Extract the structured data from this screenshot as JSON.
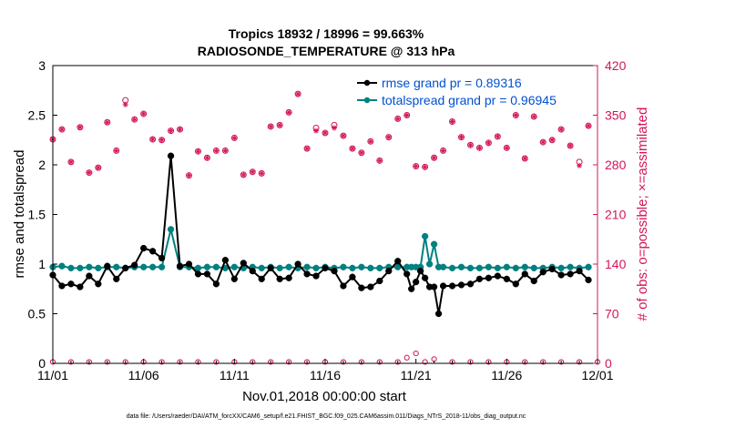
{
  "chart_data": {
    "type": "line",
    "title": "Tropics 18932 / 18996 = 99.663%",
    "subtitle": "RADIOSONDE_TEMPERATURE @ 313 hPa",
    "xlabel": "Nov.01,2018 00:00:00 start",
    "ylabel_left": "rmse and totalspread",
    "ylabel_right": "# of obs: o=possible; ×=assimilated",
    "footnote": "data file: /Users/raeder/DAI/ATM_forcXX/CAM6_setup/f.e21.FHIST_BGC.f09_025.CAM6assim.011/Diags_NTrS_2018-11/obs_diag_output.nc",
    "x_tick_labels": [
      "11/01",
      "11/06",
      "11/11",
      "11/16",
      "11/21",
      "11/26",
      "12/01"
    ],
    "x_ticks_days": [
      0,
      5,
      10,
      15,
      20,
      25,
      30
    ],
    "xlim_days": [
      0,
      30
    ],
    "ylim_left": [
      0,
      3
    ],
    "y_ticks_left": [
      "0",
      "0.5",
      "1",
      "1.5",
      "2",
      "2.5",
      "3"
    ],
    "ylim_right": [
      0,
      420
    ],
    "y_ticks_right": [
      "0",
      "70",
      "140",
      "210",
      "280",
      "350",
      "420"
    ],
    "legend_placement": "top-right",
    "colors": {
      "rmse": "#000000",
      "totalspread": "#008080",
      "obs": "#d4145a",
      "legend_text": "#0050d0"
    },
    "series": [
      {
        "name": "rmse grand pr = 0.89316",
        "axis": "left",
        "x": [
          0,
          0.5,
          1,
          1.5,
          2,
          2.5,
          3,
          3.5,
          4,
          4.5,
          5,
          5.5,
          6,
          6.5,
          7,
          7.5,
          8,
          8.5,
          9,
          9.5,
          10,
          10.5,
          11,
          11.5,
          12,
          12.5,
          13,
          13.5,
          14,
          14.5,
          15,
          15.5,
          16,
          16.5,
          17,
          17.5,
          18,
          18.5,
          19,
          19.5,
          19.75,
          20,
          20.25,
          20.5,
          20.75,
          21,
          21.25,
          21.5,
          22,
          22.5,
          23,
          23.5,
          24,
          24.5,
          25,
          25.5,
          26,
          26.5,
          27,
          27.5,
          28,
          28.5,
          29,
          29.5
        ],
        "values": [
          0.89,
          0.78,
          0.8,
          0.77,
          0.88,
          0.8,
          0.98,
          0.85,
          0.96,
          0.99,
          1.16,
          1.13,
          1.06,
          2.09,
          0.98,
          1.0,
          0.9,
          0.9,
          0.8,
          1.04,
          0.85,
          1.01,
          0.93,
          0.85,
          0.96,
          0.85,
          0.86,
          1.0,
          0.9,
          0.88,
          0.96,
          0.93,
          0.78,
          0.87,
          0.76,
          0.77,
          0.83,
          0.93,
          1.03,
          0.9,
          0.75,
          0.82,
          0.93,
          0.86,
          0.77,
          0.77,
          0.5,
          0.78,
          0.78,
          0.79,
          0.8,
          0.85,
          0.86,
          0.88,
          0.85,
          0.8,
          0.9,
          0.83,
          0.92,
          0.95,
          0.89,
          0.9,
          0.93,
          0.84
        ]
      },
      {
        "name": "totalspread grand pr = 0.96945",
        "axis": "left",
        "x": [
          0,
          0.5,
          1,
          1.5,
          2,
          2.5,
          3,
          3.5,
          4,
          4.5,
          5,
          5.5,
          6,
          6.5,
          7,
          7.5,
          8,
          8.5,
          9,
          9.5,
          10,
          10.5,
          11,
          11.5,
          12,
          12.5,
          13,
          13.5,
          14,
          14.5,
          15,
          15.5,
          16,
          16.5,
          17,
          17.5,
          18,
          18.5,
          19,
          19.5,
          19.75,
          20,
          20.25,
          20.5,
          20.75,
          21,
          21.25,
          21.5,
          22,
          22.5,
          23,
          23.5,
          24,
          24.5,
          25,
          25.5,
          26,
          26.5,
          27,
          27.5,
          28,
          28.5,
          29,
          29.5
        ],
        "values": [
          0.97,
          0.98,
          0.96,
          0.96,
          0.97,
          0.96,
          0.97,
          0.97,
          0.96,
          0.97,
          0.97,
          0.97,
          0.97,
          1.35,
          0.97,
          0.97,
          0.96,
          0.97,
          0.97,
          0.96,
          0.97,
          0.96,
          0.97,
          0.96,
          0.97,
          0.96,
          0.97,
          0.96,
          0.97,
          0.96,
          0.97,
          0.96,
          0.97,
          0.96,
          0.97,
          0.96,
          0.96,
          0.97,
          0.97,
          0.97,
          0.97,
          0.97,
          0.97,
          1.28,
          1.0,
          1.2,
          0.97,
          0.97,
          0.96,
          0.97,
          0.96,
          0.96,
          0.97,
          0.96,
          0.97,
          0.96,
          0.97,
          0.96,
          0.96,
          0.97,
          0.96,
          0.97,
          0.96,
          0.97
        ]
      },
      {
        "name": "obs possible",
        "axis": "right",
        "x": [
          0,
          0.5,
          1,
          1.5,
          2,
          2.5,
          3,
          3.5,
          4,
          4.5,
          5,
          5.5,
          6,
          6.5,
          7,
          7.5,
          8,
          8.5,
          9,
          9.5,
          10,
          10.5,
          11,
          11.5,
          12,
          12.5,
          13,
          13.5,
          14,
          14.5,
          15,
          15.5,
          16,
          16.5,
          17,
          17.5,
          18,
          18.5,
          19,
          19.5,
          20,
          20.5,
          21,
          21.5,
          22,
          22.5,
          23,
          23.5,
          24,
          24.5,
          25,
          25.5,
          26,
          26.5,
          27,
          27.5,
          28,
          28.5,
          29,
          29.5
        ],
        "values": [
          316,
          330,
          284,
          333,
          269,
          276,
          340,
          300,
          371,
          344,
          352,
          316,
          315,
          328,
          330,
          265,
          299,
          290,
          300,
          300,
          318,
          266,
          270,
          268,
          334,
          336,
          354,
          380,
          303,
          332,
          325,
          336,
          321,
          303,
          297,
          313,
          286,
          319,
          345,
          350,
          278,
          277,
          290,
          300,
          341,
          319,
          308,
          304,
          311,
          320,
          304,
          350,
          289,
          348,
          312,
          315,
          330,
          307,
          284,
          335
        ]
      },
      {
        "name": "obs assimilated",
        "axis": "right",
        "x": [
          0,
          0.5,
          1,
          1.5,
          2,
          2.5,
          3,
          3.5,
          4,
          4.5,
          5,
          5.5,
          6,
          6.5,
          7,
          7.5,
          8,
          8.5,
          9,
          9.5,
          10,
          10.5,
          11,
          11.5,
          12,
          12.5,
          13,
          13.5,
          14,
          14.5,
          15,
          15.5,
          16,
          16.5,
          17,
          17.5,
          18,
          18.5,
          19,
          19.5,
          20,
          20.5,
          21,
          21.5,
          22,
          22.5,
          23,
          23.5,
          24,
          24.5,
          25,
          25.5,
          26,
          26.5,
          27,
          27.5,
          28,
          28.5,
          29,
          29.5
        ],
        "values": [
          316,
          330,
          284,
          333,
          269,
          276,
          340,
          300,
          365,
          344,
          352,
          316,
          315,
          328,
          330,
          265,
          299,
          290,
          300,
          300,
          318,
          266,
          270,
          268,
          334,
          336,
          354,
          380,
          303,
          328,
          325,
          332,
          321,
          303,
          297,
          313,
          286,
          319,
          345,
          350,
          278,
          277,
          290,
          300,
          341,
          319,
          308,
          304,
          311,
          320,
          304,
          350,
          289,
          348,
          312,
          315,
          330,
          307,
          279,
          335
        ]
      },
      {
        "name": "obs rejected",
        "axis": "right",
        "x": [
          0,
          1,
          2,
          3,
          4,
          5,
          6,
          7,
          8,
          9,
          10,
          11,
          12,
          13,
          14,
          15,
          16,
          17,
          18,
          19,
          19.5,
          20,
          20.5,
          21,
          22,
          23,
          24,
          25,
          26,
          27,
          28,
          29,
          30
        ],
        "values": [
          2,
          2,
          2,
          2,
          2,
          2,
          2,
          2,
          2,
          2,
          2,
          2,
          2,
          2,
          2,
          2,
          2,
          2,
          2,
          2,
          8,
          14,
          2,
          6,
          2,
          2,
          2,
          2,
          2,
          2,
          2,
          2,
          2
        ]
      }
    ]
  }
}
